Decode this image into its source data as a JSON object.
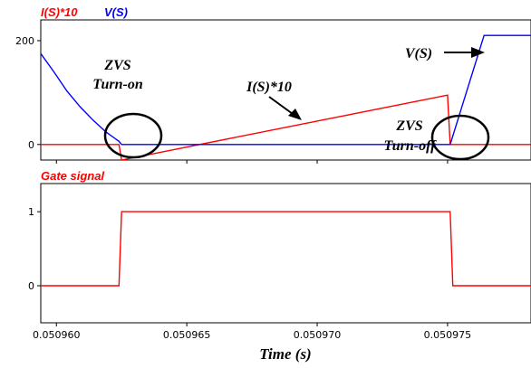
{
  "chart_data": [
    {
      "type": "line",
      "panel": "top",
      "legend": [
        {
          "label": "I(S)*10",
          "color": "#ff0000"
        },
        {
          "label": "V(S)",
          "color": "#0000ff"
        }
      ],
      "xlim": [
        0.0509594,
        0.0509782
      ],
      "ylim": [
        -30,
        240
      ],
      "yticks": [
        0,
        200
      ],
      "grid": false,
      "series": [
        {
          "name": "I(S)*10",
          "color": "#ff0000",
          "points": [
            [
              0.0509594,
              0
            ],
            [
              0.0509624,
              0
            ],
            [
              0.0509625,
              -30
            ],
            [
              0.050975,
              95
            ],
            [
              0.0509751,
              0
            ],
            [
              0.0509782,
              0
            ]
          ]
        },
        {
          "name": "V(S)",
          "color": "#0000ff",
          "points": [
            [
              0.0509594,
              175
            ],
            [
              0.0509599,
              140
            ],
            [
              0.0509604,
              103
            ],
            [
              0.0509609,
              73
            ],
            [
              0.0509614,
              47
            ],
            [
              0.0509619,
              24
            ],
            [
              0.0509624,
              6
            ],
            [
              0.0509625,
              0
            ],
            [
              0.0509751,
              0
            ],
            [
              0.0509764,
              210
            ],
            [
              0.0509782,
              210
            ]
          ]
        }
      ],
      "annotations": [
        {
          "text": "ZVS",
          "x": 0.0509623,
          "y": 118
        },
        {
          "text": "Turn-on",
          "x": 0.0509623,
          "y": 88
        },
        {
          "text": "I(S)*10",
          "x": 0.0509671,
          "y": 105
        },
        {
          "text": "V(S)",
          "x": 0.0509746,
          "y": 185
        },
        {
          "text": "ZVS",
          "x": 0.0509743,
          "y": 32
        },
        {
          "text": "Turn-off",
          "x": 0.0509743,
          "y": -7
        }
      ]
    },
    {
      "type": "line",
      "panel": "bottom",
      "legend": [
        {
          "label": "Gate signal",
          "color": "#ff0000"
        }
      ],
      "xlim": [
        0.0509594,
        0.0509782
      ],
      "ylim": [
        -0.5,
        1.38
      ],
      "yticks": [
        0,
        1
      ],
      "xticks": [
        0.05096,
        0.050965,
        0.05097,
        0.050975
      ],
      "xticklabels": [
        "0.050960",
        "0.050965",
        "0.050970",
        "0.050975"
      ],
      "xlabel": "Time (s)",
      "grid": false,
      "series": [
        {
          "name": "Gate signal",
          "color": "#ff0000",
          "points": [
            [
              0.0509594,
              0
            ],
            [
              0.0509624,
              0
            ],
            [
              0.0509625,
              1
            ],
            [
              0.0509751,
              1
            ],
            [
              0.0509752,
              0
            ],
            [
              0.0509782,
              0
            ]
          ]
        }
      ]
    }
  ]
}
